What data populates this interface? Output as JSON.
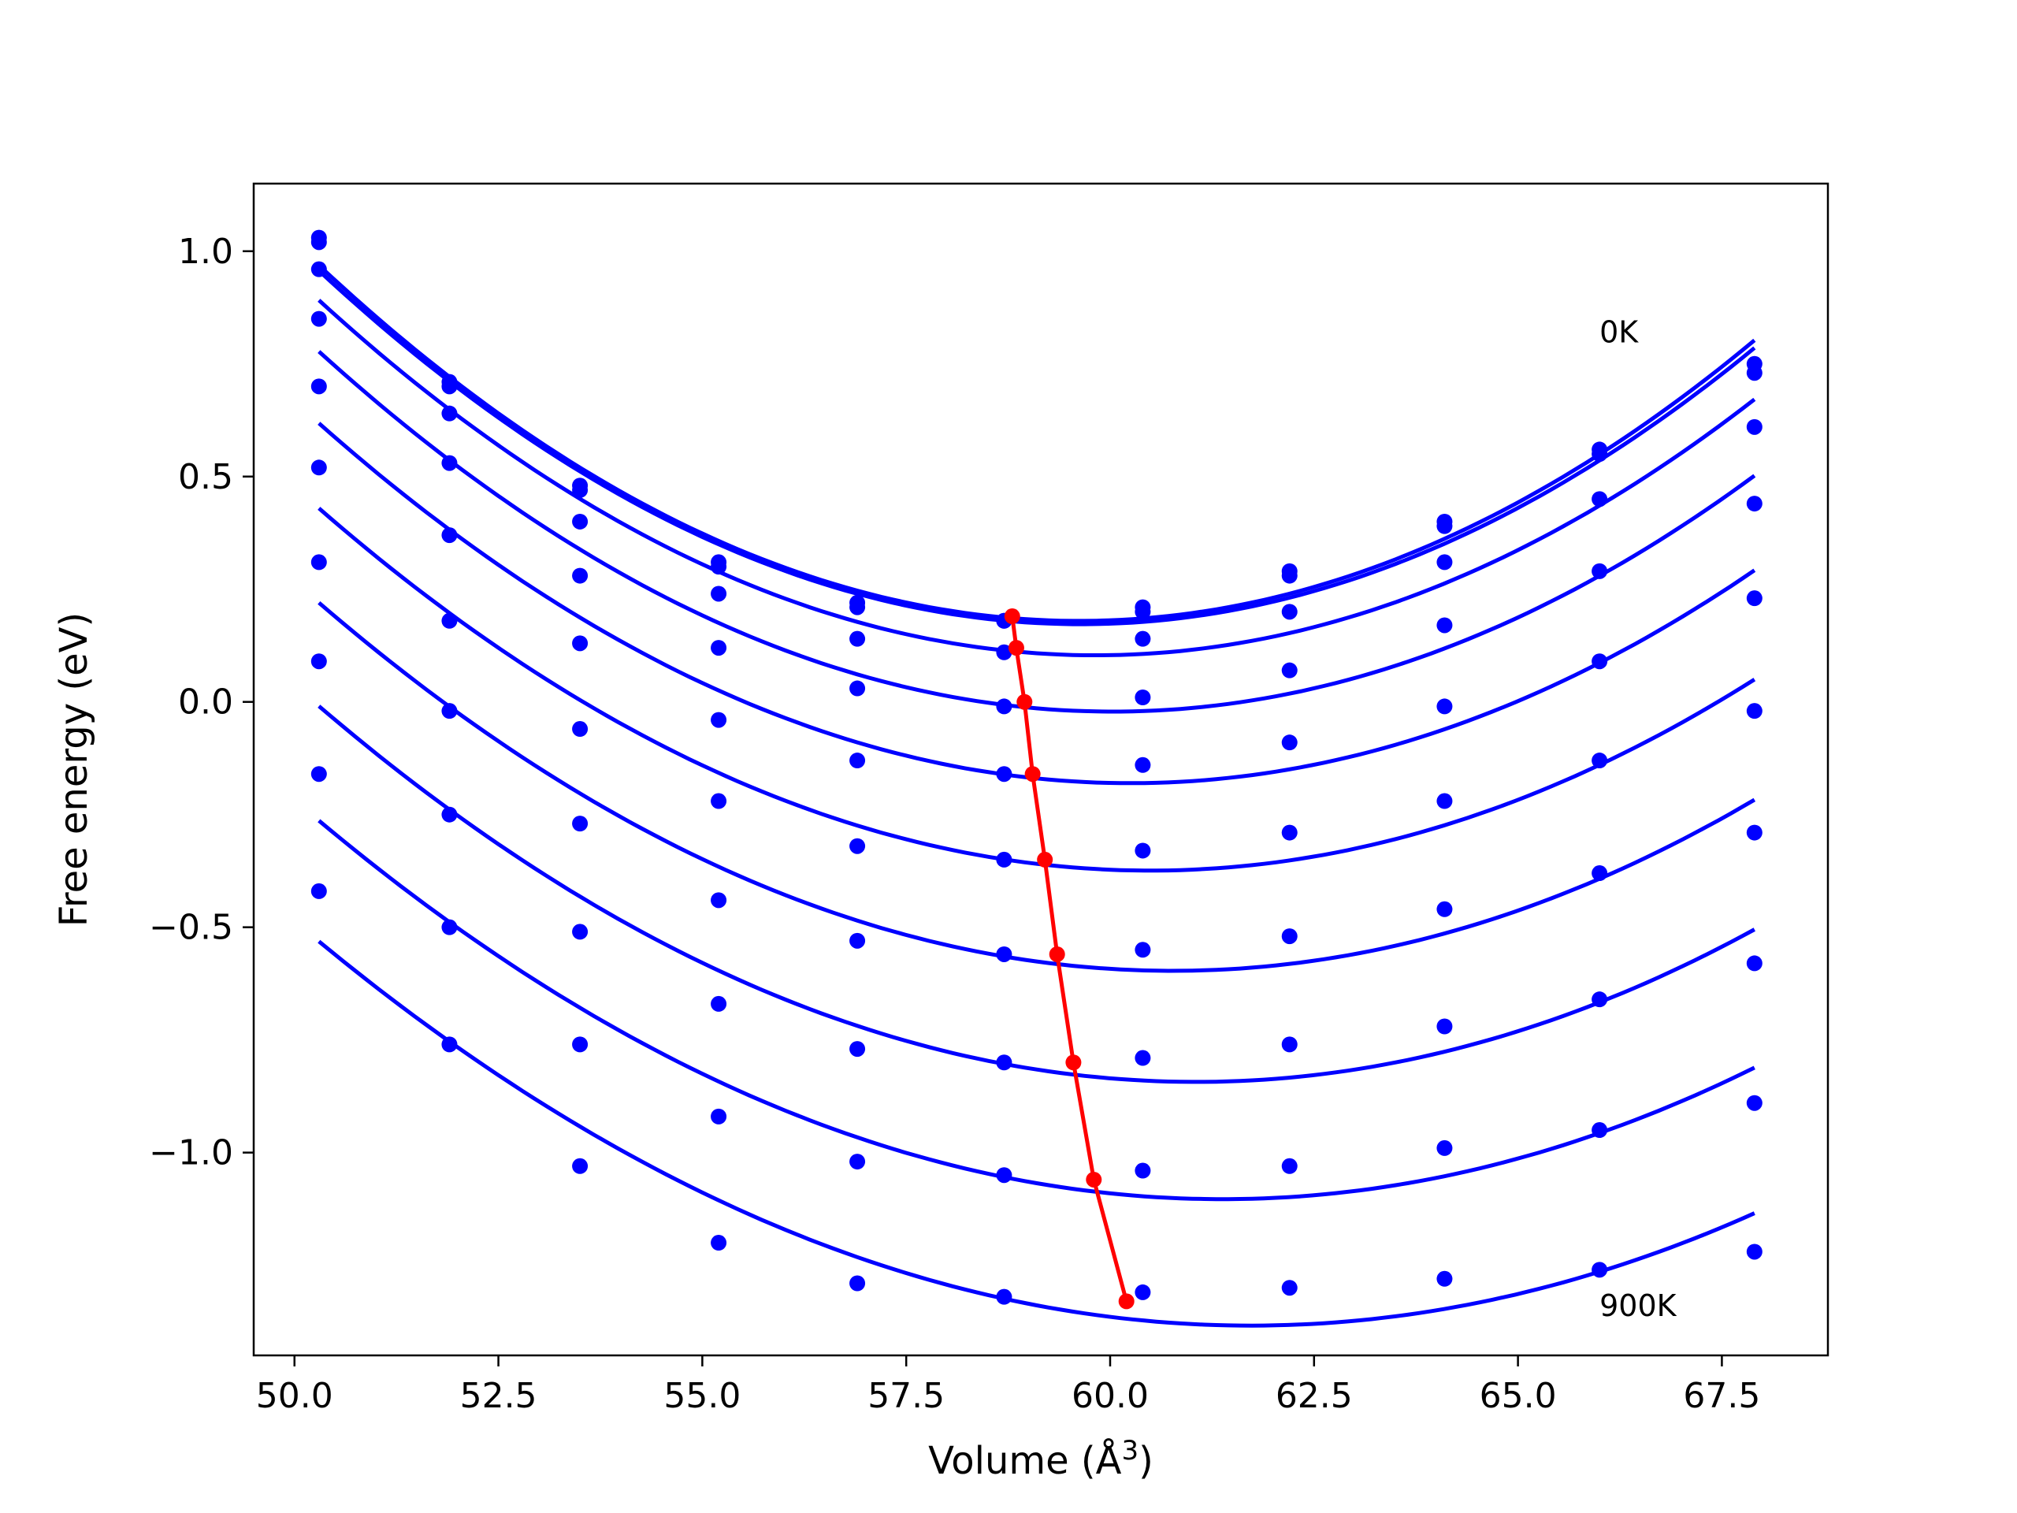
{
  "chart_data": {
    "type": "line",
    "xlabel": "Volume (Å",
    "xlabel_sup": "3",
    "xlabel_end": ")",
    "ylabel": "Free energy (eV)",
    "xlim": [
      49.5,
      68.8
    ],
    "ylim": [
      -1.45,
      1.15
    ],
    "xticks": [
      50.0,
      52.5,
      55.0,
      57.5,
      60.0,
      62.5,
      65.0,
      67.5
    ],
    "xtick_labels": [
      "50.0",
      "52.5",
      "55.0",
      "57.5",
      "60.0",
      "62.5",
      "65.0",
      "67.5"
    ],
    "yticks": [
      1.0,
      0.5,
      0.0,
      -0.5,
      -1.0
    ],
    "ytick_labels": [
      "1.0",
      "0.5",
      "0.0",
      "−0.5",
      "−1.0"
    ],
    "grid": false,
    "curve_color": "#0000ff",
    "min_line_color": "#ff0000",
    "annotations": [
      {
        "text": "0K",
        "x": 66.0,
        "y": 0.82
      },
      {
        "text": "900K",
        "x": 66.0,
        "y": -1.34
      }
    ],
    "x": [
      50.3,
      51.9,
      53.5,
      55.2,
      56.9,
      58.7,
      60.4,
      62.2,
      64.1,
      66.0,
      67.9
    ],
    "series": [
      {
        "values": [
          1.03,
          0.71,
          0.48,
          0.31,
          0.22,
          0.18,
          0.21,
          0.29,
          0.4,
          0.56,
          0.75
        ]
      },
      {
        "values": [
          1.02,
          0.7,
          0.47,
          0.3,
          0.21,
          0.18,
          0.2,
          0.28,
          0.39,
          0.55,
          0.73
        ]
      },
      {
        "values": [
          0.96,
          0.64,
          0.4,
          0.24,
          0.14,
          0.11,
          0.14,
          0.2,
          0.31,
          0.45,
          0.61
        ]
      },
      {
        "values": [
          0.85,
          0.53,
          0.28,
          0.12,
          0.03,
          -0.01,
          0.01,
          0.07,
          0.17,
          0.29,
          0.44
        ]
      },
      {
        "values": [
          0.7,
          0.37,
          0.13,
          -0.04,
          -0.13,
          -0.16,
          -0.14,
          -0.09,
          -0.01,
          0.09,
          0.23
        ]
      },
      {
        "values": [
          0.52,
          0.18,
          -0.06,
          -0.22,
          -0.32,
          -0.35,
          -0.33,
          -0.29,
          -0.22,
          -0.13,
          -0.02
        ]
      },
      {
        "values": [
          0.31,
          -0.02,
          -0.27,
          -0.44,
          -0.53,
          -0.56,
          -0.55,
          -0.52,
          -0.46,
          -0.38,
          -0.29
        ]
      },
      {
        "values": [
          0.09,
          -0.25,
          -0.51,
          -0.67,
          -0.77,
          -0.8,
          -0.79,
          -0.76,
          -0.72,
          -0.66,
          -0.58
        ]
      },
      {
        "values": [
          -0.16,
          -0.5,
          -0.76,
          -0.92,
          -1.02,
          -1.05,
          -1.04,
          -1.03,
          -0.99,
          -0.95,
          -0.89
        ]
      },
      {
        "values": [
          -0.42,
          -0.76,
          -1.03,
          -1.2,
          -1.29,
          -1.32,
          -1.31,
          -1.3,
          -1.28,
          -1.26,
          -1.22
        ]
      }
    ],
    "minima": {
      "x": [
        58.8,
        58.85,
        58.95,
        59.05,
        59.2,
        59.35,
        59.55,
        59.8,
        60.2
      ],
      "y": [
        0.19,
        0.12,
        0.0,
        -0.16,
        -0.35,
        -0.56,
        -0.8,
        -1.06,
        -1.33
      ]
    }
  }
}
